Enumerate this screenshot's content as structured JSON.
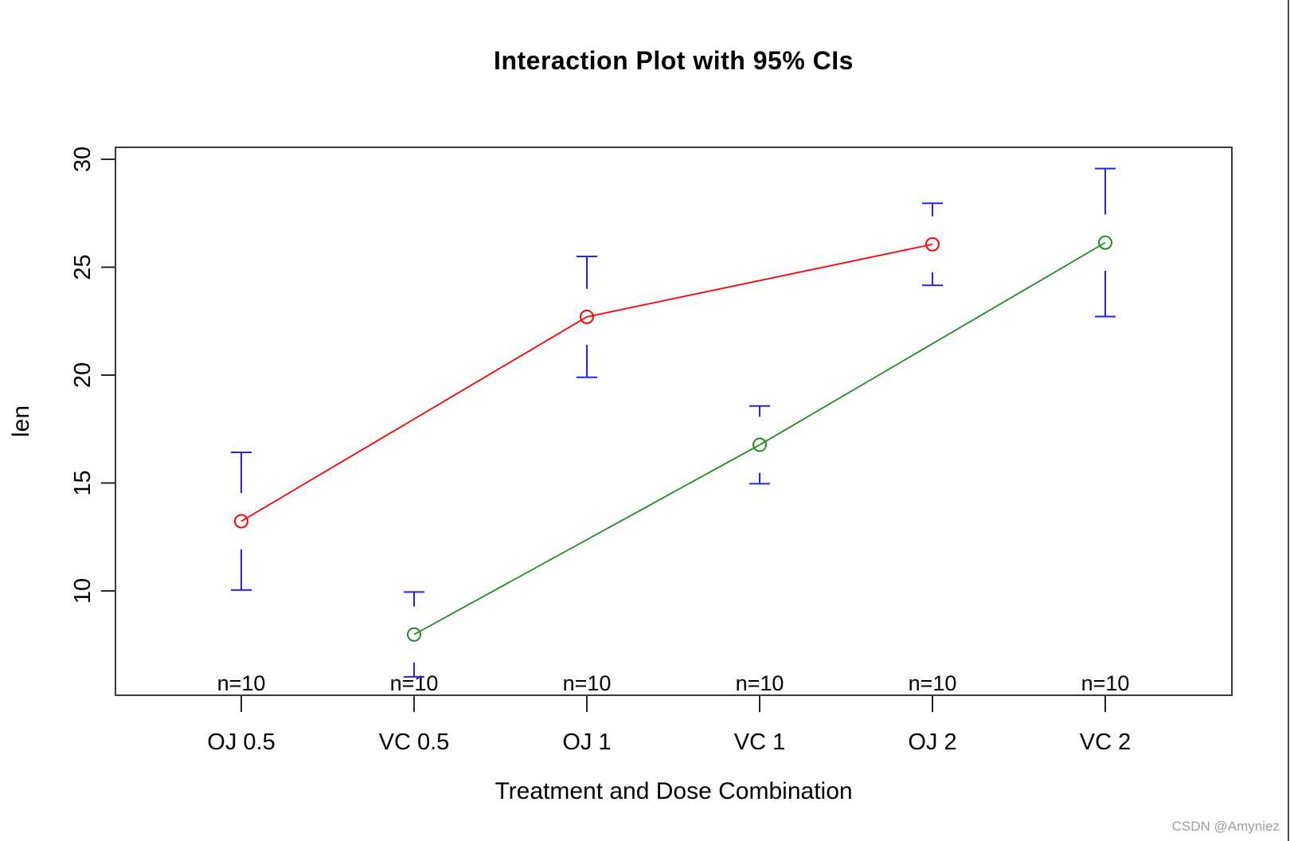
{
  "watermark": {
    "text": "CSDN @Amyniez",
    "color": "#9e9e9e"
  },
  "chart_data": {
    "type": "line",
    "title": "Interaction Plot with 95% CIs",
    "xlabel": "Treatment and Dose Combination",
    "ylabel": "len",
    "categories": [
      "OJ 0.5",
      "VC 0.5",
      "OJ 1",
      "VC 1",
      "OJ 2",
      "VC 2"
    ],
    "sample_size_labels": [
      "n=10",
      "n=10",
      "n=10",
      "n=10",
      "n=10",
      "n=10"
    ],
    "y_ticks": [
      10,
      15,
      20,
      25,
      30
    ],
    "ylim": [
      5.2,
      30.6
    ],
    "grid": false,
    "legend": "none",
    "error_bar_color": "#2222ff",
    "error_bar_gap_units": 1.3,
    "axis_color": "#3a3a3a",
    "series": [
      {
        "name": "OJ",
        "color": "#ff0000",
        "category_indices": [
          0,
          2,
          4
        ],
        "means": [
          13.23,
          22.7,
          26.06
        ],
        "ci_lower": [
          10.04,
          19.9,
          24.16
        ],
        "ci_upper": [
          16.42,
          25.5,
          27.96
        ]
      },
      {
        "name": "VC",
        "color": "#228b22",
        "category_indices": [
          1,
          3,
          5
        ],
        "means": [
          7.98,
          16.77,
          26.14
        ],
        "ci_lower": [
          6.02,
          14.97,
          22.71
        ],
        "ci_upper": [
          9.95,
          18.57,
          29.57
        ]
      }
    ]
  }
}
